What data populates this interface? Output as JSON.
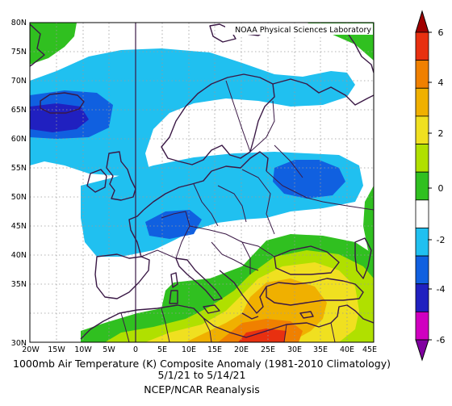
{
  "credit": "NOAA Physical Sciences Laboratory",
  "caption": {
    "title": "1000mb Air Temperature (K) Composite Anomaly (1981-2010 Climatology)",
    "dates": "5/1/21 to 5/14/21",
    "source": "NCEP/NCAR Reanalysis"
  },
  "axes": {
    "lat_labels": [
      "80N",
      "75N",
      "70N",
      "65N",
      "60N",
      "55N",
      "50N",
      "45N",
      "40N",
      "35N",
      "30N"
    ],
    "lon_labels": [
      "20W",
      "15W",
      "10W",
      "5W",
      "0",
      "5E",
      "10E",
      "15E",
      "20E",
      "25E",
      "30E",
      "35E",
      "40E",
      "45E"
    ]
  },
  "colorbar": {
    "tick_labels": [
      "6",
      "4",
      "2",
      "0",
      "-2",
      "-4",
      "-6"
    ],
    "colors": [
      "#a00000",
      "#e83010",
      "#f08000",
      "#f0b000",
      "#f0e020",
      "#b0e000",
      "#30c020",
      "#ffffff",
      "#20c0f0",
      "#1060e0",
      "#2020c0",
      "#d000c0",
      "#8000a0"
    ]
  }
}
